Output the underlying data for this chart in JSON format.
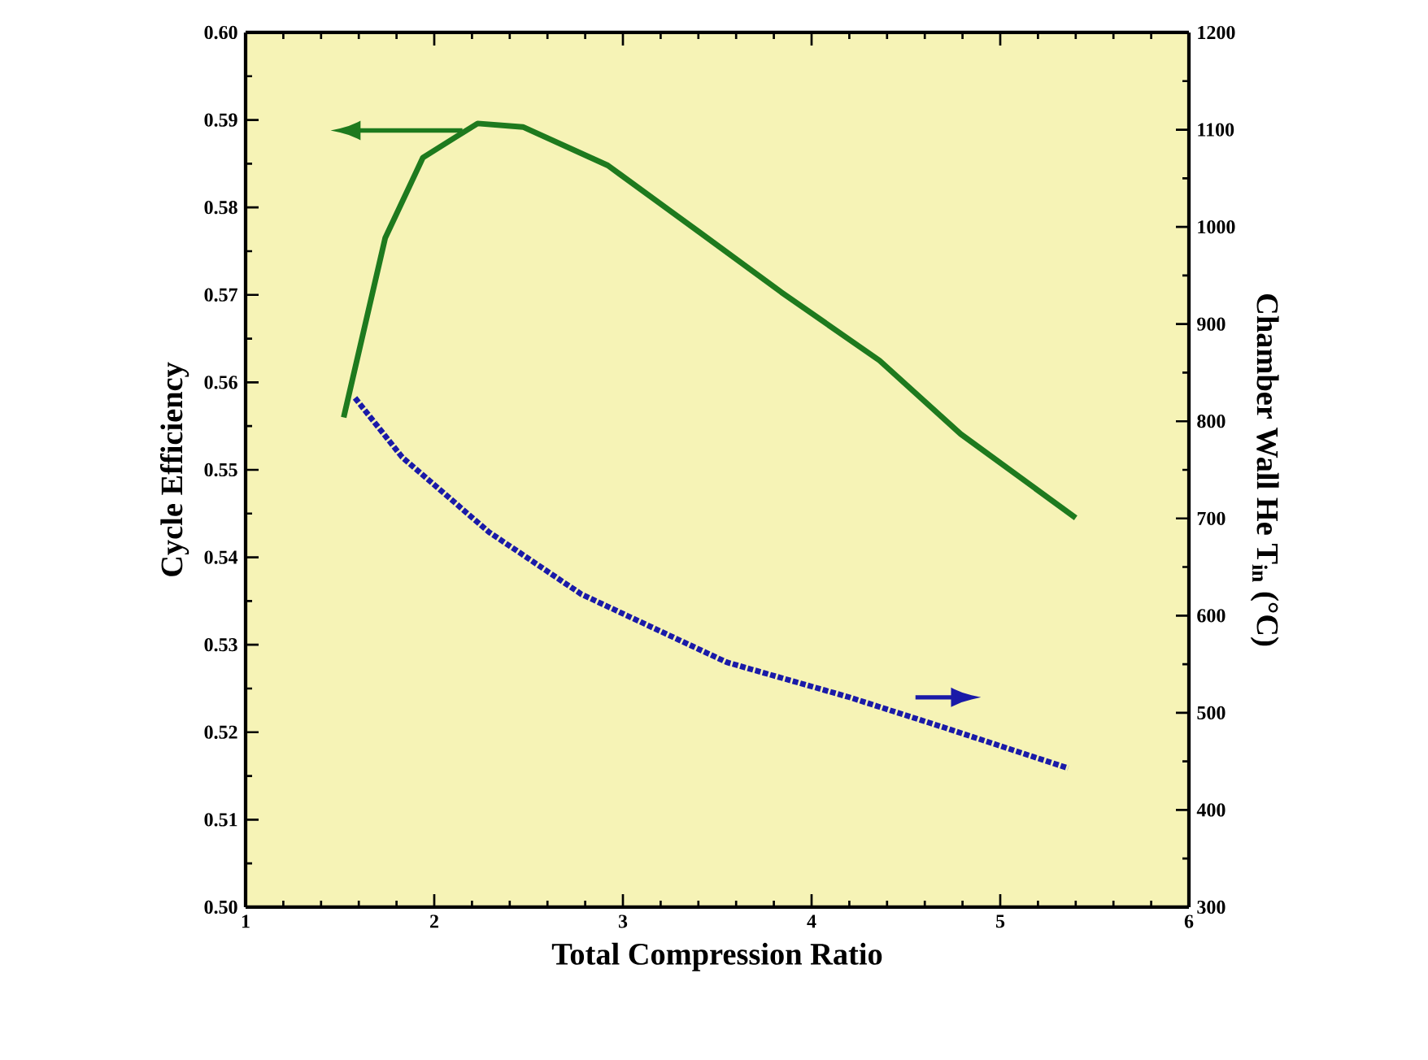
{
  "chart_data": {
    "type": "line",
    "xlabel": "Total Compression Ratio",
    "ylabel": "Cycle Efficiency",
    "y2label": "Chamber Wall He T$_{in}$ (°C)",
    "marker": "none",
    "grid": false,
    "xlim": [
      1,
      6
    ],
    "xticks": [
      1,
      2,
      3,
      4,
      5,
      6
    ],
    "ylim": [
      0.5,
      0.6
    ],
    "yticks": [
      {
        "value": 0.5,
        "label": "0.50"
      },
      {
        "value": 0.51,
        "label": "0.51"
      },
      {
        "value": 0.52,
        "label": "0.52"
      },
      {
        "value": 0.53,
        "label": "0.53"
      },
      {
        "value": 0.54,
        "label": "0.54"
      },
      {
        "value": 0.55,
        "label": "0.55"
      },
      {
        "value": 0.56,
        "label": "0.56"
      },
      {
        "value": 0.57,
        "label": "0.57"
      },
      {
        "value": 0.58,
        "label": "0.58"
      },
      {
        "value": 0.59,
        "label": "0.59"
      },
      {
        "value": 0.6,
        "label": "0.60"
      }
    ],
    "y2lim": [
      300,
      1200
    ],
    "y2ticks": [
      300,
      400,
      500,
      600,
      700,
      800,
      900,
      1000,
      1100,
      1200
    ],
    "series": [
      {
        "color": "#1e7a1e",
        "line_style": "solid",
        "x": [
          1.52,
          1.74,
          1.94,
          2.11,
          2.23,
          2.47,
          2.92,
          3.41,
          3.84,
          4.36,
          4.79,
          5.4
        ],
        "values": [
          0.556,
          0.5765,
          0.5857,
          0.588,
          0.5896,
          0.5892,
          0.5848,
          0.5771,
          0.5703,
          0.5625,
          0.5541,
          0.5445
        ]
      },
      {
        "color": "#1a1aa8",
        "line_style": "dotted",
        "axis": "y2",
        "x": [
          1.58,
          1.83,
          2.29,
          2.78,
          3.55,
          4.2,
          4.7,
          5.36
        ],
        "values": [
          824,
          763,
          686,
          622,
          552,
          516,
          485,
          443
        ]
      }
    ]
  }
}
